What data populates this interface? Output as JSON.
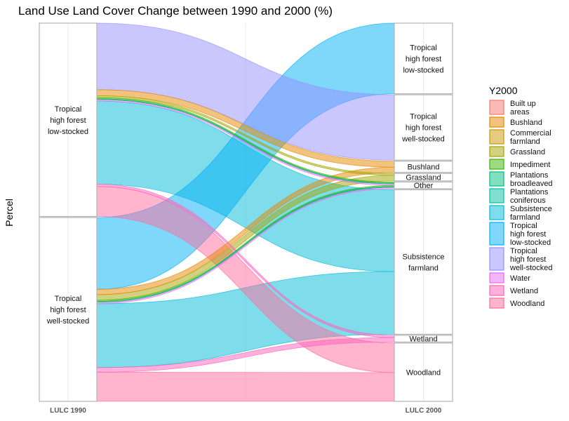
{
  "chart_data": {
    "type": "alluvial",
    "title": "Land Use Land Cover Change between 1990 and 2000 (%)",
    "ylabel": "Percel",
    "axes": [
      "LULC 1990",
      "LULC 2000"
    ],
    "legend_title": "Y2000",
    "legend_position": "right",
    "strata_1990": [
      {
        "name": "Tropical high forest low-stocked",
        "lines": [
          "Tropical",
          "high forest",
          "low-stocked"
        ]
      },
      {
        "name": "Tropical high forest well-stocked",
        "lines": [
          "Tropical",
          "high forest",
          "well-stocked"
        ]
      }
    ],
    "strata_2000": [
      {
        "name": "Tropical high forest low-stocked",
        "lines": [
          "Tropical",
          "high forest",
          "low-stocked"
        ]
      },
      {
        "name": "Tropical high forest well-stocked",
        "lines": [
          "Tropical",
          "high forest",
          "well-stocked"
        ]
      },
      {
        "name": "Bushland",
        "lines": [
          "Bushland"
        ]
      },
      {
        "name": "Grassland",
        "lines": [
          "Grassland"
        ]
      },
      {
        "name": "Other",
        "lines": [
          "Other"
        ]
      },
      {
        "name": "Subsistence farmland",
        "lines": [
          "Subsistence",
          "farmland"
        ]
      },
      {
        "name": "Wetland",
        "lines": [
          "Wetland"
        ]
      },
      {
        "name": "Woodland",
        "lines": [
          "Woodland"
        ]
      }
    ],
    "categories": [
      {
        "key": "built",
        "label": [
          "Built up",
          "areas"
        ],
        "color": "#F8766D"
      },
      {
        "key": "bush",
        "label": [
          "Bushland"
        ],
        "color": "#E58700"
      },
      {
        "key": "comm",
        "label": [
          "Commercial",
          "farmland"
        ],
        "color": "#C99800"
      },
      {
        "key": "grass",
        "label": [
          "Grassland"
        ],
        "color": "#A3A500"
      },
      {
        "key": "imped",
        "label": [
          "Impediment"
        ],
        "color": "#39B600"
      },
      {
        "key": "plbr",
        "label": [
          "Plantations",
          "broadleaved"
        ],
        "color": "#00BF7D"
      },
      {
        "key": "plco",
        "label": [
          "Plantations",
          "coniferous"
        ],
        "color": "#00C1A3"
      },
      {
        "key": "subs",
        "label": [
          "Subsistence",
          "farmland"
        ],
        "color": "#00BCD8"
      },
      {
        "key": "thfl",
        "label": [
          "Tropical",
          "high forest",
          "low-stocked"
        ],
        "color": "#00B0F6"
      },
      {
        "key": "thfw",
        "label": [
          "Tropical",
          "high forest",
          "well-stocked"
        ],
        "color": "#9590FF"
      },
      {
        "key": "water",
        "label": [
          "Water"
        ],
        "color": "#E76BF3"
      },
      {
        "key": "wet",
        "label": [
          "Wetland"
        ],
        "color": "#FF62BC"
      },
      {
        "key": "wood",
        "label": [
          "Woodland"
        ],
        "color": "#FF6C9D"
      }
    ],
    "flows": [
      {
        "from": "Tropical high forest low-stocked",
        "to": "Tropical high forest well-stocked",
        "cat": "thfw",
        "value": 17.5
      },
      {
        "from": "Tropical high forest low-stocked",
        "to": "Bushland",
        "cat": "bush",
        "value": 1.6
      },
      {
        "from": "Tropical high forest low-stocked",
        "to": "Grassland",
        "cat": "grass",
        "value": 0.5
      },
      {
        "from": "Tropical high forest low-stocked",
        "to": "Other",
        "cat": "imped",
        "value": 0.3
      },
      {
        "from": "Tropical high forest low-stocked",
        "to": "Other",
        "cat": "plbr",
        "value": 0.2
      },
      {
        "from": "Tropical high forest low-stocked",
        "to": "Other",
        "cat": "water",
        "value": 0.4
      },
      {
        "from": "Tropical high forest low-stocked",
        "to": "Subsistence farmland",
        "cat": "subs",
        "value": 21.9
      },
      {
        "from": "Tropical high forest low-stocked",
        "to": "Wetland",
        "cat": "wet",
        "value": 0.6
      },
      {
        "from": "Tropical high forest low-stocked",
        "to": "Woodland",
        "cat": "wood",
        "value": 7.9
      },
      {
        "from": "Tropical high forest well-stocked",
        "to": "Tropical high forest low-stocked",
        "cat": "thfl",
        "value": 18.9
      },
      {
        "from": "Tropical high forest well-stocked",
        "to": "Bushland",
        "cat": "bush",
        "value": 1.4
      },
      {
        "from": "Tropical high forest well-stocked",
        "to": "Grassland",
        "cat": "grass",
        "value": 1.5
      },
      {
        "from": "Tropical high forest well-stocked",
        "to": "Other",
        "cat": "imped",
        "value": 0.3
      },
      {
        "from": "Tropical high forest well-stocked",
        "to": "Other",
        "cat": "plbr",
        "value": 0.2
      },
      {
        "from": "Tropical high forest well-stocked",
        "to": "Other",
        "cat": "water",
        "value": 0.4
      },
      {
        "from": "Tropical high forest well-stocked",
        "to": "Subsistence farmland",
        "cat": "subs",
        "value": 16.8
      },
      {
        "from": "Tropical high forest well-stocked",
        "to": "Wetland",
        "cat": "wet",
        "value": 1.2
      },
      {
        "from": "Tropical high forest well-stocked",
        "to": "Woodland",
        "cat": "wood",
        "value": 7.7
      }
    ]
  }
}
